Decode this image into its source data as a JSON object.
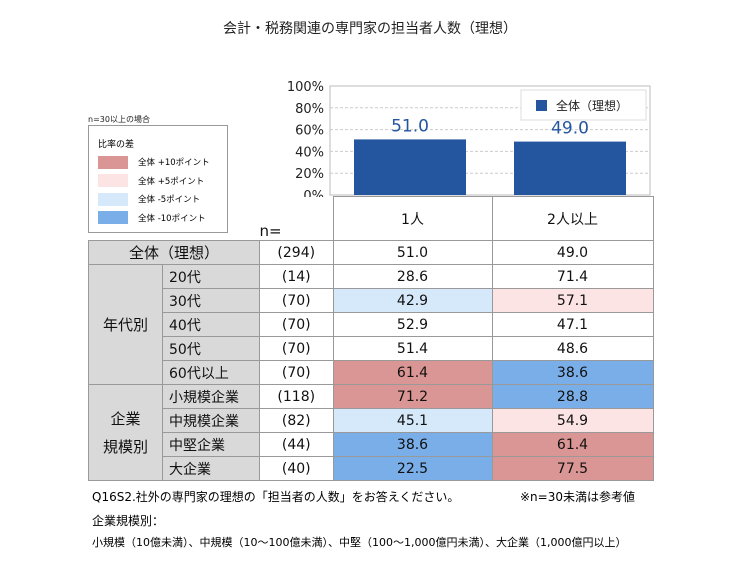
{
  "title": "会計・税務関連の専門家の担当者人数（理想）",
  "n_condition": "n=30以上の場合",
  "diff_legend": {
    "title": "比率の差",
    "items": [
      {
        "label": "全体 +10ポイント",
        "color": "#d99694"
      },
      {
        "label": "全体 +5ポイント",
        "color": "#fce4e4"
      },
      {
        "label": "全体 -5ポイント",
        "color": "#d6e9fb"
      },
      {
        "label": "全体 -10ポイント",
        "color": "#7aaee8"
      }
    ]
  },
  "chart_data": {
    "type": "bar",
    "categories": [
      "1人",
      "2人以上"
    ],
    "series": [
      {
        "name": "全体（理想）",
        "values": [
          51.0,
          49.0
        ],
        "color": "#2456a0"
      }
    ],
    "ylim": [
      0,
      100
    ],
    "yticks": [
      "0%",
      "20%",
      "40%",
      "60%",
      "80%",
      "100%"
    ],
    "grid": true,
    "legend_position": "top-right",
    "data_label_color": "#2456a0"
  },
  "table": {
    "n_header": "n=",
    "columns": [
      "1人",
      "2人以上"
    ],
    "total": {
      "label": "全体（理想）",
      "n": "(294)",
      "values": [
        "51.0",
        "49.0"
      ]
    },
    "groups": [
      {
        "label": "年代別",
        "rows": [
          {
            "label": "20代",
            "n": "(14)",
            "values": [
              "28.6",
              "71.4"
            ],
            "hl": [
              "",
              ""
            ]
          },
          {
            "label": "30代",
            "n": "(70)",
            "values": [
              "42.9",
              "57.1"
            ],
            "hl": [
              "m5",
              "p5"
            ]
          },
          {
            "label": "40代",
            "n": "(70)",
            "values": [
              "52.9",
              "47.1"
            ],
            "hl": [
              "",
              ""
            ]
          },
          {
            "label": "50代",
            "n": "(70)",
            "values": [
              "51.4",
              "48.6"
            ],
            "hl": [
              "",
              ""
            ]
          },
          {
            "label": "60代以上",
            "n": "(70)",
            "values": [
              "61.4",
              "38.6"
            ],
            "hl": [
              "p10",
              "m10"
            ]
          }
        ]
      },
      {
        "label": "企業\n規模別",
        "rows": [
          {
            "label": "小規模企業",
            "n": "(118)",
            "values": [
              "71.2",
              "28.8"
            ],
            "hl": [
              "p10",
              "m10"
            ]
          },
          {
            "label": "中規模企業",
            "n": "(82)",
            "values": [
              "45.1",
              "54.9"
            ],
            "hl": [
              "m5",
              "p5"
            ]
          },
          {
            "label": "中堅企業",
            "n": "(44)",
            "values": [
              "38.6",
              "61.4"
            ],
            "hl": [
              "m10",
              "p10"
            ]
          },
          {
            "label": "大企業",
            "n": "(40)",
            "values": [
              "22.5",
              "77.5"
            ],
            "hl": [
              "m10",
              "p10"
            ]
          }
        ]
      }
    ]
  },
  "footer": {
    "question": "Q16S2.社外の専門家の理想の「担当者の人数」をお答えください。",
    "note": "※n=30未満は参考値",
    "size_title": "企業規模別：",
    "size_def": "小規模（10億未満）、中規模（10～100億未満）、中堅（100～1,000億円未満）、大企業（1,000億円以上）"
  }
}
